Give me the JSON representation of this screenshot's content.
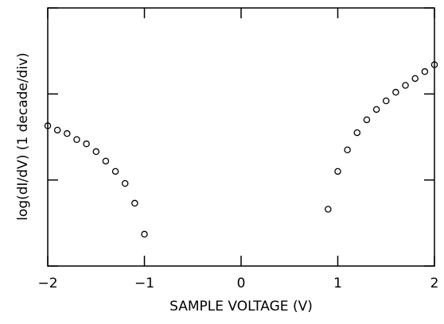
{
  "chart_data": {
    "type": "scatter",
    "xlabel": "SAMPLE VOLTAGE (V)",
    "ylabel": "log(dI/dV)   (1 decade/div)",
    "xlim": [
      -2,
      2
    ],
    "ylim": [
      0,
      3
    ],
    "x_ticks": [
      -2,
      -1,
      0,
      1,
      2
    ],
    "x_tick_labels": [
      "−2",
      "−1",
      "0",
      "1",
      "2"
    ],
    "y_ticks": [
      0,
      1,
      2,
      3
    ],
    "grid": false,
    "marker": "open-circle",
    "series": [
      {
        "x": [
          -2.0,
          -1.9,
          -1.8,
          -1.7,
          -1.6,
          -1.5,
          -1.4,
          -1.3,
          -1.2,
          -1.1,
          -1.0,
          0.9,
          1.0,
          1.1,
          1.2,
          1.3,
          1.4,
          1.5,
          1.6,
          1.7,
          1.8,
          1.9,
          2.0
        ],
        "y": [
          1.63,
          1.58,
          1.54,
          1.47,
          1.42,
          1.33,
          1.22,
          1.1,
          0.96,
          0.73,
          0.37,
          0.66,
          1.1,
          1.35,
          1.55,
          1.7,
          1.82,
          1.92,
          2.02,
          2.1,
          2.18,
          2.26,
          2.34
        ]
      }
    ]
  }
}
